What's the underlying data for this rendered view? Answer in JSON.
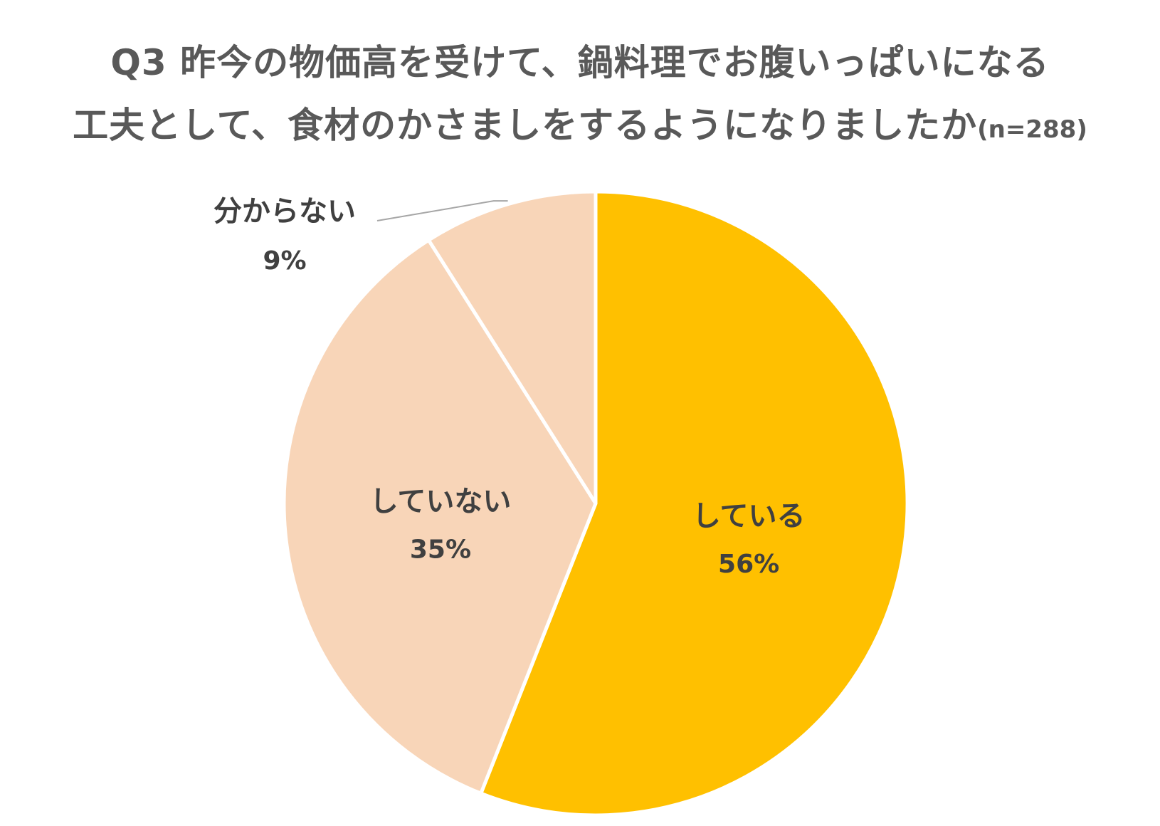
{
  "chart_data": {
    "type": "pie",
    "title_line1": "Q3 昨今の物価高を受けて、鍋料理でお腹いっぱいになる",
    "title_line2": "工夫として、食材のかさましをするようになりましたか",
    "title_suffix": "(n=288)",
    "categories": [
      "している",
      "していない",
      "分からない"
    ],
    "values": [
      56,
      35,
      9
    ],
    "value_labels": [
      "56%",
      "35%",
      "9%"
    ],
    "colors": [
      "#FFC000",
      "#F8D5B8",
      "#F8D5B8"
    ],
    "start": "12 o'clock",
    "direction": "clockwise",
    "legend": "none"
  }
}
